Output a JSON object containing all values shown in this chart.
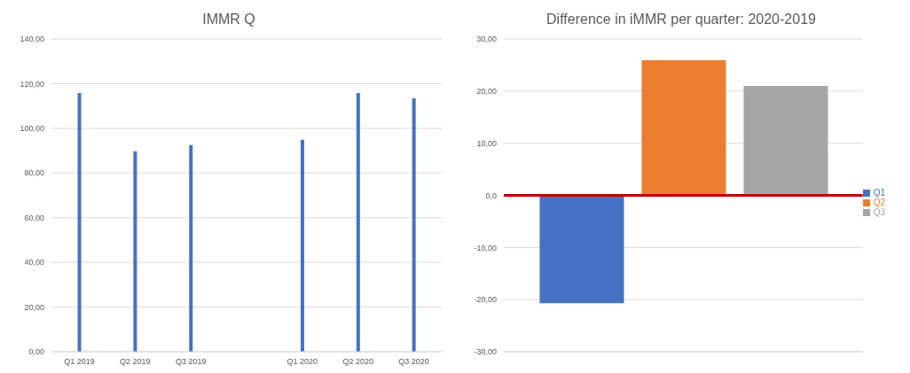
{
  "chart_data": [
    {
      "type": "bar",
      "title": "IMMR Q",
      "categories": [
        "Q1 2019",
        "Q2 2019",
        "Q3 2019",
        null,
        "Q1 2020",
        "Q2 2020",
        "Q3 2020"
      ],
      "values": [
        115.8,
        89.7,
        92.5,
        null,
        94.9,
        115.8,
        113.4
      ],
      "color": "#4472c4",
      "ylim": [
        0,
        140
      ],
      "yticks": [
        {
          "value": 0,
          "label": "0,00"
        },
        {
          "value": 20,
          "label": "20,00"
        },
        {
          "value": 40,
          "label": "40,00"
        },
        {
          "value": 60,
          "label": "60,00"
        },
        {
          "value": 80,
          "label": "80,00"
        },
        {
          "value": 100,
          "label": "100,00"
        },
        {
          "value": 120,
          "label": "120,00"
        },
        {
          "value": 140,
          "label": "140,00"
        }
      ],
      "grid": "y",
      "legend": false
    },
    {
      "type": "bar",
      "title": "Difference in iMMR per quarter: 2020-2019",
      "categories": [
        null
      ],
      "series": [
        {
          "name": "Q1",
          "color": "#4472c4",
          "values": [
            -20.7
          ]
        },
        {
          "name": "Q2",
          "color": "#ed7d31",
          "values": [
            25.9
          ]
        },
        {
          "name": "Q3",
          "color": "#a5a5a5",
          "values": [
            21.0
          ]
        }
      ],
      "ylim": [
        -30,
        30
      ],
      "yticks": [
        {
          "value": -30,
          "label": "-30,00"
        },
        {
          "value": -20,
          "label": "-20,00"
        },
        {
          "value": -10,
          "label": "-10,00"
        },
        {
          "value": 0,
          "label": "0,0"
        },
        {
          "value": 10,
          "label": "10,00"
        },
        {
          "value": 20,
          "label": "20,00"
        },
        {
          "value": 30,
          "label": "30,00"
        }
      ],
      "grid": "y",
      "legend": "right",
      "ref_lines": [
        {
          "axis": "y",
          "value": 0,
          "color": "#c00000"
        }
      ]
    }
  ]
}
